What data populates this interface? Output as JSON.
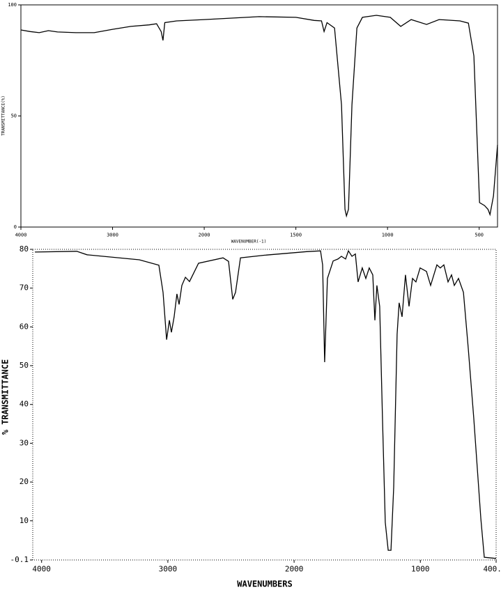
{
  "chart_data": [
    {
      "type": "line",
      "x_label": "WAVENUMBER(-1)",
      "y_label": "TRANSMITTANCE(%)",
      "xlim": [
        4000,
        400
      ],
      "xticks": [
        4000,
        3000,
        2000,
        1500,
        1000,
        500
      ],
      "xbreak": 2000,
      "xbreak_factor": 2,
      "ylim": [
        0,
        100
      ],
      "yticks": [
        0,
        50,
        100
      ],
      "color": "#000000",
      "x": [
        4000,
        3900,
        3800,
        3700,
        3600,
        3400,
        3200,
        3000,
        2800,
        2600,
        2520,
        2470,
        2450,
        2430,
        2300,
        2000,
        1700,
        1500,
        1400,
        1360,
        1346,
        1330,
        1289,
        1251,
        1232,
        1224,
        1213,
        1194,
        1167,
        1137,
        1061,
        985,
        928,
        871,
        787,
        719,
        605,
        559,
        529,
        498,
        471,
        452,
        441,
        422,
        400
      ],
      "values": [
        88.7,
        88,
        87.5,
        88.4,
        87.8,
        87.5,
        87.5,
        89,
        90.3,
        91,
        91.5,
        88,
        84,
        92,
        92.8,
        93.4,
        94.7,
        94.4,
        93,
        92.8,
        88,
        92,
        89.6,
        55,
        8,
        5,
        8,
        55,
        89.6,
        94.4,
        95.3,
        94.4,
        90.3,
        93.4,
        91.2,
        93.4,
        92.8,
        91.8,
        77,
        11,
        9.7,
        8,
        5.6,
        14,
        37
      ]
    },
    {
      "type": "line",
      "x_label": "WAVENUMBERS",
      "y_label": "% TRANSMITTANCE",
      "xlim": [
        4070,
        400
      ],
      "xticks": [
        4000,
        3000,
        2000,
        1000,
        {
          "value": 400,
          "label": "400.0"
        }
      ],
      "ylim": [
        -0.1,
        80
      ],
      "yticks": [
        80,
        70,
        60,
        50,
        40,
        30,
        20,
        10,
        -0.1
      ],
      "color": "#000000",
      "x": [
        4053,
        3722,
        3640,
        3226,
        3071,
        3038,
        3010,
        2988,
        2972,
        2950,
        2928,
        2911,
        2889,
        2861,
        2828,
        2757,
        2563,
        2519,
        2486,
        2464,
        2425,
        2232,
        1901,
        1791,
        1774,
        1758,
        1736,
        1691,
        1653,
        1625,
        1592,
        1570,
        1542,
        1515,
        1493,
        1460,
        1432,
        1405,
        1377,
        1360,
        1344,
        1322,
        1300,
        1278,
        1255,
        1233,
        1211,
        1184,
        1168,
        1145,
        1118,
        1090,
        1062,
        1035,
        1002,
        952,
        919,
        869,
        842,
        814,
        781,
        753,
        731,
        698,
        659,
        621,
        577,
        521,
        494,
        400
      ],
      "values": [
        79.3,
        79.5,
        78.6,
        77.3,
        75.9,
        68.9,
        56.7,
        61.7,
        58.6,
        62.6,
        68.5,
        65.8,
        70.7,
        72.8,
        71.7,
        76.4,
        77.8,
        76.9,
        67.1,
        68.9,
        77.8,
        78.5,
        79.4,
        79.6,
        76,
        50.9,
        72.5,
        77,
        77.5,
        78.2,
        77.5,
        79.6,
        78.2,
        78.8,
        71.6,
        75.2,
        72.5,
        75.2,
        73.4,
        61.7,
        70.7,
        65.3,
        36.5,
        9.6,
        2.4,
        2.4,
        18.6,
        58.1,
        66.2,
        62.6,
        73.4,
        65.3,
        72.5,
        71.6,
        75.2,
        74.3,
        70.7,
        76,
        75.2,
        76,
        71.6,
        73.4,
        70.7,
        72.5,
        68.9,
        54.5,
        36.5,
        10.5,
        0.6,
        0.3
      ]
    }
  ]
}
